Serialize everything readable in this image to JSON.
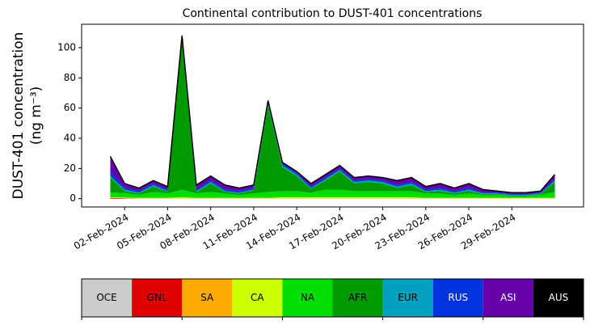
{
  "chart_data": {
    "type": "stacked-area",
    "title": "Continental contribution to DUST-401 concentrations",
    "ylabel": [
      "DUST-401 concentration",
      "(ng m⁻³)"
    ],
    "x": [
      "2024-02-01",
      "2024-02-02",
      "2024-02-03",
      "2024-02-04",
      "2024-02-05",
      "2024-02-06",
      "2024-02-07",
      "2024-02-08",
      "2024-02-09",
      "2024-02-10",
      "2024-02-11",
      "2024-02-12",
      "2024-02-13",
      "2024-02-14",
      "2024-02-15",
      "2024-02-16",
      "2024-02-17",
      "2024-02-18",
      "2024-02-19",
      "2024-02-20",
      "2024-02-21",
      "2024-02-22",
      "2024-02-23",
      "2024-02-24",
      "2024-02-25",
      "2024-02-26",
      "2024-02-27",
      "2024-02-28",
      "2024-02-29",
      "2024-03-01",
      "2024-03-02",
      "2024-03-03"
    ],
    "xlim": [
      "2024-01-30",
      "2024-03-05"
    ],
    "xticks": [
      {
        "value": "2024-02-02",
        "label": "02-Feb-2024"
      },
      {
        "value": "2024-02-05",
        "label": "05-Feb-2024"
      },
      {
        "value": "2024-02-08",
        "label": "08-Feb-2024"
      },
      {
        "value": "2024-02-11",
        "label": "11-Feb-2024"
      },
      {
        "value": "2024-02-14",
        "label": "14-Feb-2024"
      },
      {
        "value": "2024-02-17",
        "label": "17-Feb-2024"
      },
      {
        "value": "2024-02-20",
        "label": "20-Feb-2024"
      },
      {
        "value": "2024-02-23",
        "label": "23-Feb-2024"
      },
      {
        "value": "2024-02-26",
        "label": "26-Feb-2024"
      },
      {
        "value": "2024-02-29",
        "label": "29-Feb-2024"
      }
    ],
    "ylim": [
      -5.5,
      115.5
    ],
    "yticks": [
      0,
      20,
      40,
      60,
      80,
      100
    ],
    "series": [
      {
        "name": "OCE",
        "color": "#cccccc",
        "values": [
          0,
          0,
          0,
          0,
          0,
          0,
          0,
          0,
          0,
          0,
          0,
          0,
          0,
          0,
          0,
          0,
          0,
          0,
          0,
          0,
          0,
          0,
          0,
          0,
          0,
          0,
          0,
          0,
          0,
          0,
          0,
          0
        ]
      },
      {
        "name": "GNL",
        "color": "#e00000",
        "values": [
          0.5,
          0.3,
          0,
          0,
          0,
          0,
          0,
          0,
          0,
          0,
          0,
          0,
          0,
          0,
          0,
          0,
          0,
          0,
          0,
          0,
          0,
          0,
          0,
          0,
          0,
          0,
          0,
          0,
          0,
          0,
          0,
          0
        ]
      },
      {
        "name": "SA",
        "color": "#ffaa00",
        "values": [
          0,
          0,
          0,
          0,
          0,
          0,
          0,
          0,
          0,
          0,
          0,
          0,
          0,
          0,
          0,
          0,
          0,
          0,
          0,
          0,
          0,
          0,
          0,
          0,
          0,
          0,
          0,
          0,
          0,
          0,
          0,
          0
        ]
      },
      {
        "name": "CA",
        "color": "#ccff00",
        "values": [
          0.5,
          0.5,
          0.5,
          0.5,
          0.5,
          1,
          0.5,
          0.5,
          0.5,
          0.5,
          0.5,
          0.5,
          1,
          1,
          1,
          1,
          1,
          1,
          1,
          1,
          1,
          1,
          0.5,
          0.5,
          0.5,
          0.5,
          0.5,
          0.5,
          0.5,
          0.5,
          0.5,
          0.5
        ]
      },
      {
        "name": "NA",
        "color": "#00dd00",
        "values": [
          3,
          3,
          2,
          4,
          3,
          5,
          3,
          4,
          3,
          2,
          3,
          4,
          4,
          4,
          3,
          5,
          5,
          4,
          4,
          4,
          4,
          4,
          3,
          3,
          2,
          3,
          2,
          2,
          1,
          1,
          2,
          4
        ]
      },
      {
        "name": "AFR",
        "color": "#009900",
        "values": [
          10,
          1.2,
          1,
          3.5,
          1,
          99,
          1,
          5.5,
          1,
          1,
          2,
          57.5,
          16,
          10,
          2.5,
          6,
          12,
          5,
          6,
          5,
          2,
          4,
          1,
          1.5,
          1,
          1.5,
          0.5,
          0.5,
          0.5,
          0.5,
          0.5,
          6.5
        ]
      },
      {
        "name": "EUR",
        "color": "#00a0c0",
        "values": [
          1,
          1,
          0.5,
          1,
          0.5,
          1,
          0.5,
          1,
          0.5,
          0.5,
          0.5,
          1,
          1,
          1,
          0.5,
          1,
          1,
          1,
          1,
          1,
          1,
          1,
          0.5,
          1,
          0.5,
          1,
          0.5,
          0.5,
          0.5,
          0.5,
          0.5,
          1
        ]
      },
      {
        "name": "RUS",
        "color": "#0033dd",
        "values": [
          3,
          1,
          1,
          1,
          1,
          1,
          1,
          1,
          1,
          1,
          1,
          1,
          1,
          1,
          1,
          1,
          1,
          1,
          1,
          1,
          1,
          1,
          1,
          1,
          1,
          1,
          0.5,
          0.5,
          0.5,
          0.5,
          0.5,
          1
        ]
      },
      {
        "name": "ASI",
        "color": "#6600aa",
        "values": [
          10,
          3,
          2,
          2,
          2,
          1,
          3,
          3,
          3,
          2,
          2,
          1,
          1,
          1,
          2,
          2,
          2,
          2,
          2,
          2,
          3,
          3,
          2,
          3,
          2,
          3,
          2,
          1,
          1,
          1,
          1,
          3
        ]
      },
      {
        "name": "AUS",
        "color": "#000000",
        "values": [
          0,
          0,
          0,
          0,
          0,
          0,
          0,
          0,
          0,
          0,
          0,
          0,
          0,
          0,
          0,
          0,
          0,
          0,
          0,
          0,
          0,
          0,
          0,
          0,
          0,
          0,
          0,
          0,
          0,
          0,
          0,
          0
        ]
      }
    ]
  }
}
